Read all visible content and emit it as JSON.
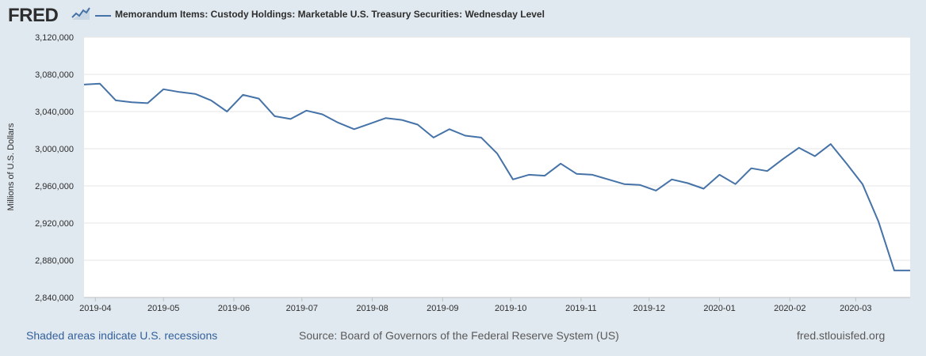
{
  "logo": {
    "text": "FRED"
  },
  "legend": {
    "label": "Memorandum Items: Custody Holdings: Marketable U.S. Treasury Securities: Wednesday Level"
  },
  "footer": {
    "recessions": "Shaded areas indicate U.S. recessions",
    "source": "Source: Board of Governors of the Federal Reserve System (US)",
    "site": "fred.stlouisfed.org"
  },
  "colors": {
    "line": "#4572a7",
    "background": "#e1e9f0",
    "plot": "#ffffff"
  },
  "chart_data": {
    "type": "line",
    "title": "Memorandum Items: Custody Holdings: Marketable U.S. Treasury Securities: Wednesday Level",
    "ylabel": "Millions of U.S. Dollars",
    "xlabel": "",
    "ylim": [
      2840000,
      3120000
    ],
    "yticks": [
      2840000,
      2880000,
      2920000,
      2960000,
      3000000,
      3040000,
      3080000,
      3120000
    ],
    "ytick_labels": [
      "2,840,000",
      "2,880,000",
      "2,920,000",
      "2,960,000",
      "3,000,000",
      "3,040,000",
      "3,080,000",
      "3,120,000"
    ],
    "xlim": [
      "2019-03-27",
      "2020-03-25"
    ],
    "xticks": [
      "2019-04-01",
      "2019-05-01",
      "2019-06-01",
      "2019-07-01",
      "2019-08-01",
      "2019-09-01",
      "2019-10-01",
      "2019-11-01",
      "2019-12-01",
      "2020-01-01",
      "2020-02-01",
      "2020-03-01"
    ],
    "xtick_labels": [
      "2019-04",
      "2019-05",
      "2019-06",
      "2019-07",
      "2019-08",
      "2019-09",
      "2019-10",
      "2019-11",
      "2019-12",
      "2020-01",
      "2020-02",
      "2020-03"
    ],
    "grid": true,
    "series": [
      {
        "name": "Memorandum Items: Custody Holdings: Marketable U.S. Treasury Securities: Wednesday Level",
        "x": [
          "2019-03-27",
          "2019-04-03",
          "2019-04-10",
          "2019-04-17",
          "2019-04-24",
          "2019-05-01",
          "2019-05-08",
          "2019-05-15",
          "2019-05-22",
          "2019-05-29",
          "2019-06-05",
          "2019-06-12",
          "2019-06-19",
          "2019-06-26",
          "2019-07-03",
          "2019-07-10",
          "2019-07-17",
          "2019-07-24",
          "2019-07-31",
          "2019-08-07",
          "2019-08-14",
          "2019-08-21",
          "2019-08-28",
          "2019-09-04",
          "2019-09-11",
          "2019-09-18",
          "2019-09-25",
          "2019-10-02",
          "2019-10-09",
          "2019-10-16",
          "2019-10-23",
          "2019-10-30",
          "2019-11-06",
          "2019-11-13",
          "2019-11-20",
          "2019-11-27",
          "2019-12-04",
          "2019-12-11",
          "2019-12-18",
          "2019-12-25",
          "2020-01-01",
          "2020-01-08",
          "2020-01-15",
          "2020-01-22",
          "2020-01-29",
          "2020-02-05",
          "2020-02-12",
          "2020-02-19",
          "2020-02-26",
          "2020-03-04",
          "2020-03-11",
          "2020-03-18",
          "2020-03-25"
        ],
        "values": [
          3069000,
          3070000,
          3052000,
          3050000,
          3049000,
          3064000,
          3061000,
          3059000,
          3052000,
          3040000,
          3058000,
          3054000,
          3035000,
          3032000,
          3041000,
          3037000,
          3028000,
          3021000,
          3027000,
          3033000,
          3031000,
          3026000,
          3012000,
          3021000,
          3014000,
          3012000,
          2995000,
          2967000,
          2972000,
          2971000,
          2984000,
          2973000,
          2972000,
          2967000,
          2962000,
          2961000,
          2955000,
          2967000,
          2963000,
          2957000,
          2972000,
          2962000,
          2979000,
          2976000,
          2989000,
          3001000,
          2992000,
          3005000,
          2984000,
          2962000,
          2922000,
          2869000,
          2869000
        ]
      }
    ]
  }
}
